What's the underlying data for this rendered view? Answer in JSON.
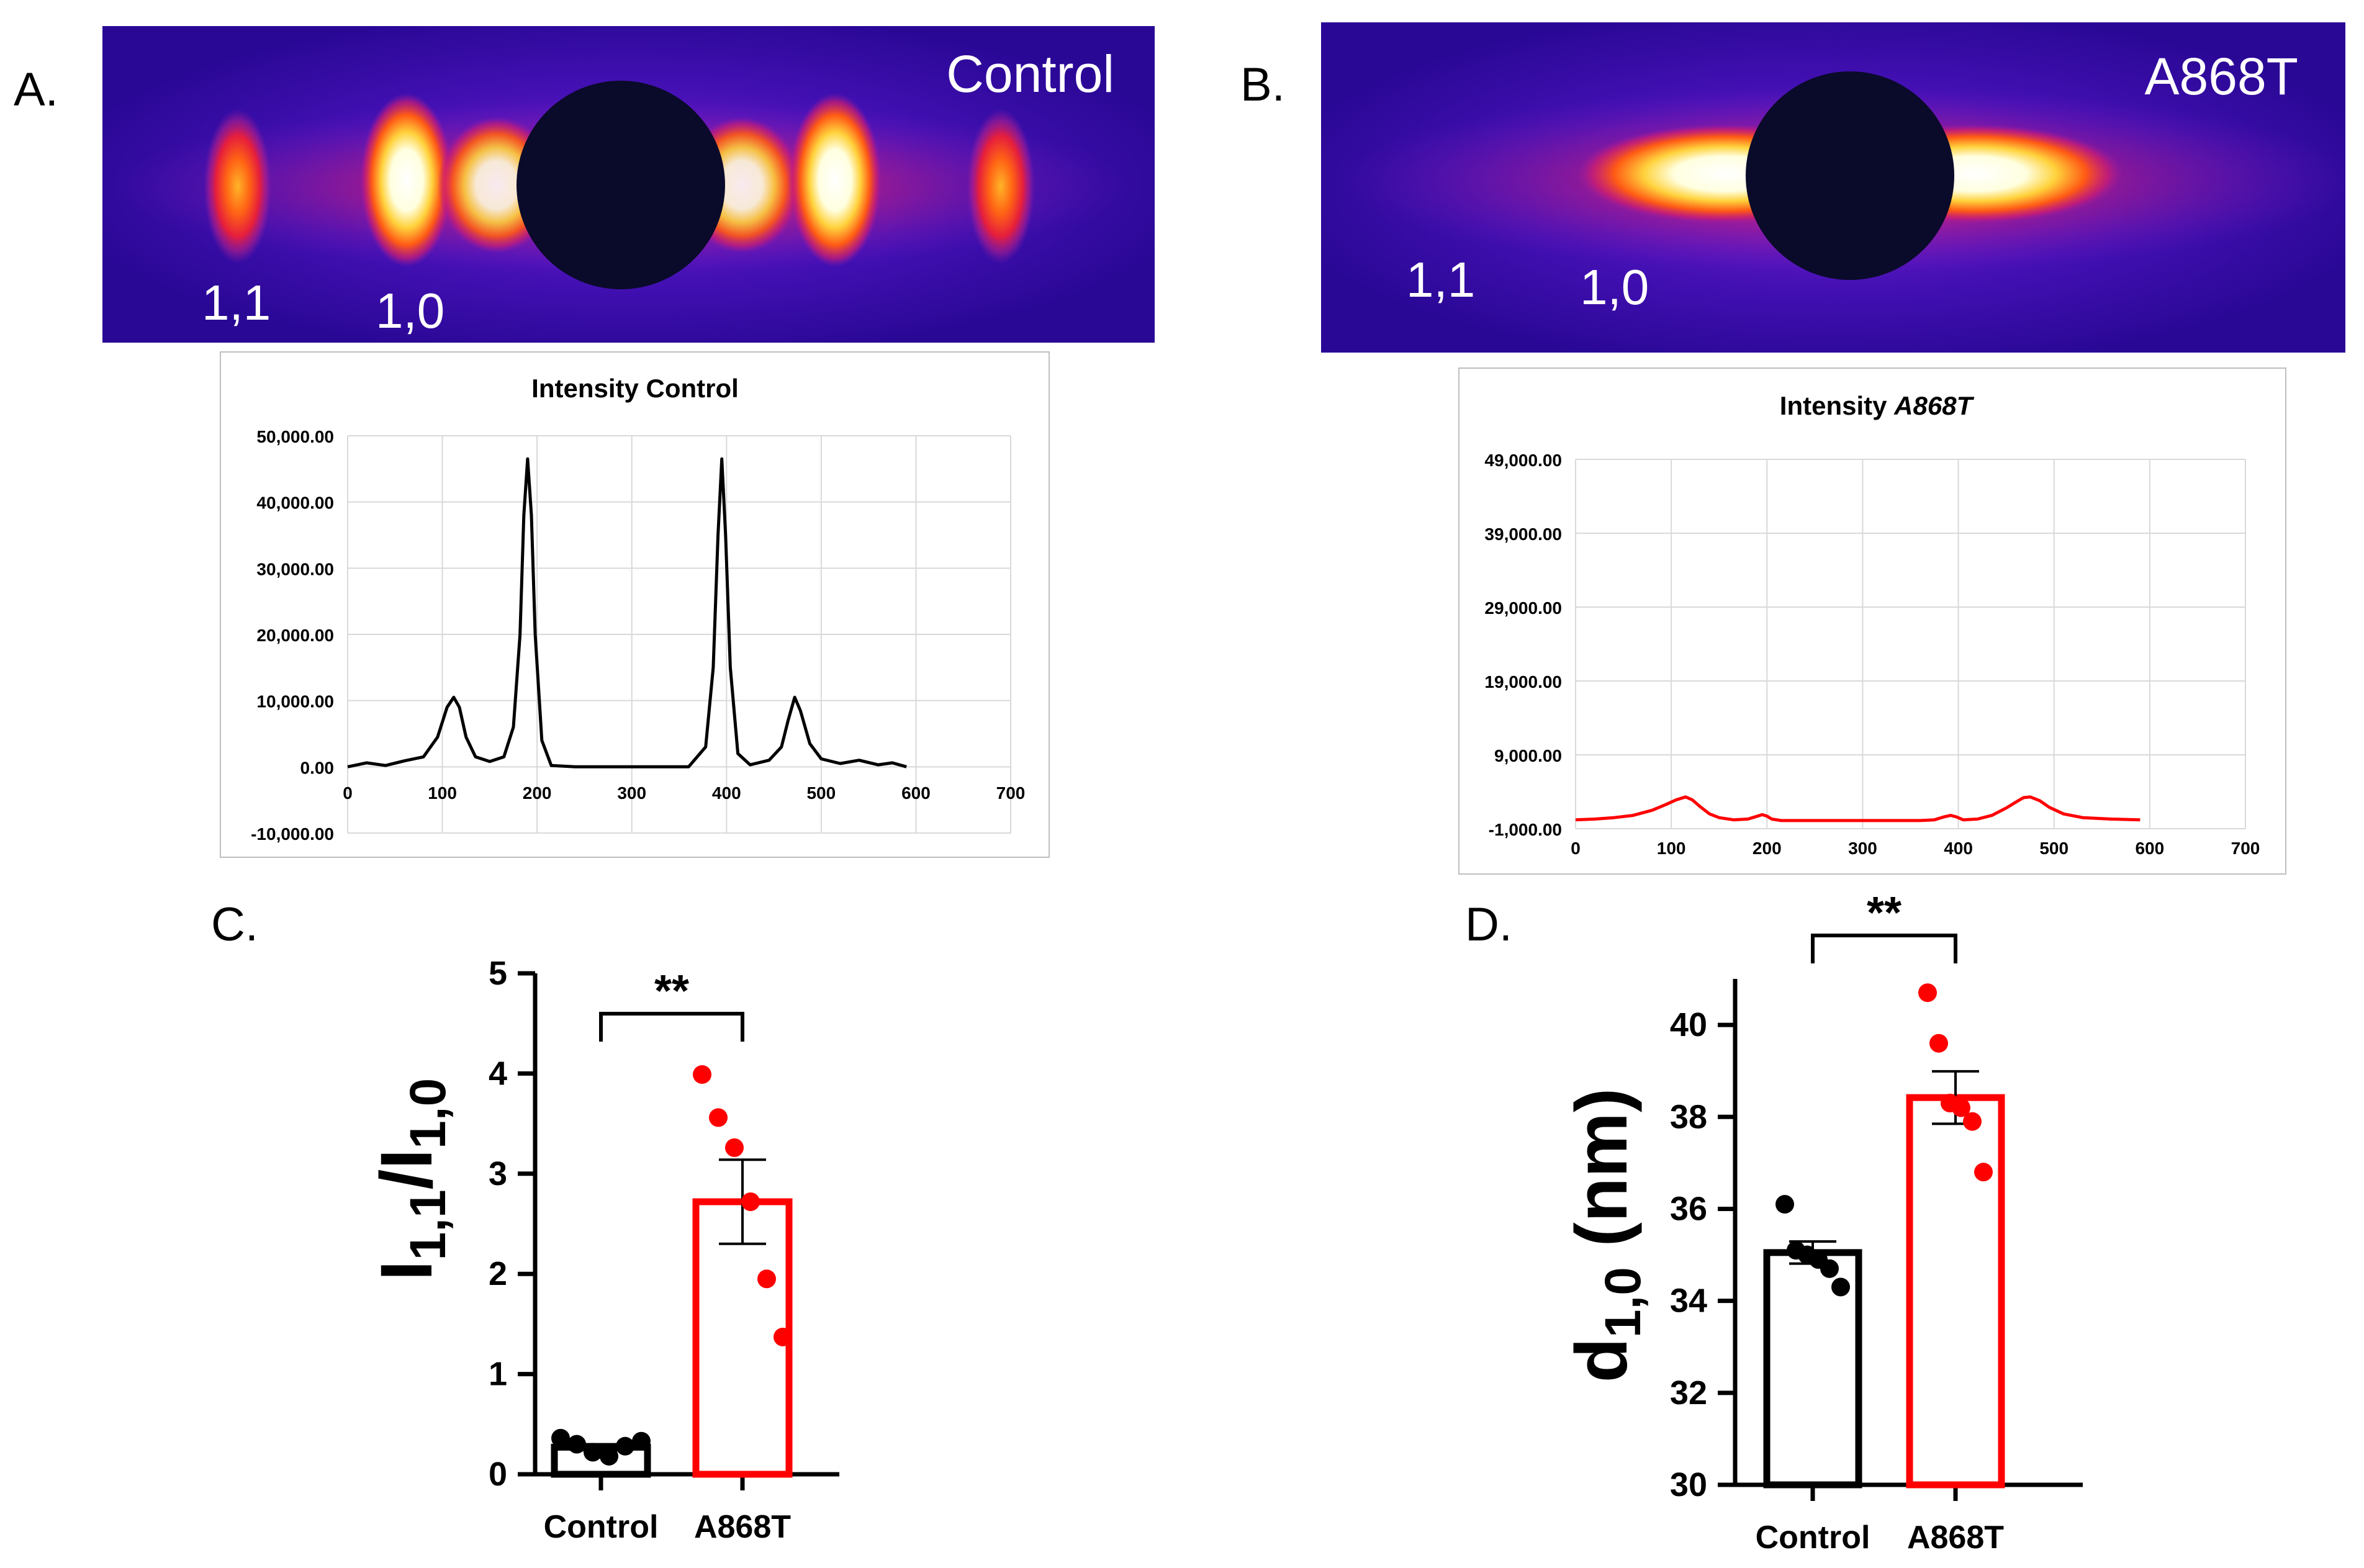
{
  "colors": {
    "background": "#ffffff",
    "axis": "#000000",
    "grid": "#d9d9d9",
    "frame": "#bfbfbf",
    "control_trace": "#000000",
    "a868t_trace": "#ff0000",
    "control_bar": "#000000",
    "a868t_bar": "#ff0000",
    "a868t_points": "#ff0000",
    "control_points": "#000000",
    "diffraction_background": "#3b0aa8",
    "diffraction_beamstop": "#0a0a2a",
    "diffraction_hot": "#ffffff",
    "label_on_image": "#ffffff"
  },
  "panels": {
    "a": {
      "letter": "A.",
      "image_label": "Control",
      "reflections": {
        "r11": "1,1",
        "r10": "1,0"
      }
    },
    "b": {
      "letter": "B.",
      "image_label": "A868T",
      "reflections": {
        "r11": "1,1",
        "r10": "1,0"
      }
    },
    "c": {
      "letter": "C."
    },
    "d": {
      "letter": "D."
    }
  },
  "chart_data": [
    {
      "id": "A",
      "type": "line",
      "title": "Intensity Control",
      "xlim": [
        0,
        700
      ],
      "ylim": [
        -10000,
        50000
      ],
      "x_ticks": [
        0,
        100,
        200,
        300,
        400,
        500,
        600,
        700
      ],
      "y_ticks": [
        -10000,
        0,
        10000,
        20000,
        30000,
        40000,
        50000
      ],
      "y_tick_labels": [
        "-10,000.00",
        "0.00",
        "10,000.00",
        "20,000.00",
        "30,000.00",
        "40,000.00",
        "50,000.00"
      ],
      "grid": true,
      "series": [
        {
          "color": "#000000",
          "x": [
            0,
            20,
            40,
            60,
            80,
            95,
            105,
            112,
            118,
            125,
            135,
            150,
            165,
            175,
            182,
            186,
            190,
            194,
            198,
            205,
            215,
            240,
            300,
            360,
            378,
            386,
            391,
            395,
            399,
            404,
            412,
            425,
            445,
            458,
            465,
            472,
            478,
            488,
            500,
            520,
            540,
            560,
            575,
            590
          ],
          "y": [
            0,
            600,
            200,
            900,
            1500,
            4500,
            9000,
            10500,
            9000,
            4500,
            1500,
            800,
            1500,
            6000,
            20000,
            38000,
            46500,
            38000,
            20000,
            4000,
            200,
            0,
            0,
            0,
            3000,
            15000,
            35000,
            46500,
            35000,
            15000,
            2000,
            300,
            1000,
            3000,
            7000,
            10500,
            8500,
            3500,
            1200,
            500,
            1000,
            300,
            600,
            0
          ]
        }
      ]
    },
    {
      "id": "B",
      "type": "line",
      "title_prefix": "Intensity ",
      "title_emphasis": "A868T",
      "xlim": [
        0,
        700
      ],
      "ylim": [
        -1000,
        49000
      ],
      "x_ticks": [
        0,
        100,
        200,
        300,
        400,
        500,
        600,
        700
      ],
      "y_ticks": [
        -1000,
        9000,
        19000,
        29000,
        39000,
        49000
      ],
      "y_tick_labels": [
        "-1,000.00",
        "9,000.00",
        "19,000.00",
        "29,000.00",
        "39,000.00",
        "49,000.00"
      ],
      "grid": true,
      "series": [
        {
          "color": "#ff0000",
          "x": [
            0,
            20,
            40,
            60,
            80,
            95,
            105,
            115,
            122,
            130,
            140,
            150,
            165,
            180,
            190,
            195,
            200,
            205,
            215,
            240,
            300,
            360,
            375,
            385,
            392,
            398,
            405,
            420,
            435,
            450,
            460,
            468,
            475,
            485,
            495,
            510,
            530,
            560,
            590
          ],
          "y": [
            200,
            300,
            500,
            800,
            1500,
            2300,
            2900,
            3300,
            2900,
            2000,
            1000,
            500,
            200,
            300,
            700,
            900,
            700,
            300,
            100,
            100,
            100,
            100,
            200,
            600,
            800,
            600,
            200,
            300,
            800,
            1800,
            2600,
            3200,
            3300,
            2800,
            1900,
            1000,
            500,
            300,
            200
          ]
        }
      ]
    },
    {
      "id": "C",
      "type": "bar",
      "categories": [
        "Control",
        "A868T"
      ],
      "ylabel_main": "I",
      "ylabel_sub1": "1,1",
      "ylabel_sep": "/I",
      "ylabel_sub2": "1,0",
      "ylim": [
        0,
        5
      ],
      "y_ticks": [
        0,
        1,
        2,
        3,
        4,
        5
      ],
      "y_tick_labels": [
        "0",
        "1",
        "2",
        "3",
        "4",
        "5"
      ],
      "grid": false,
      "significance": "**",
      "series": [
        {
          "categories": [
            "Control",
            "A868T"
          ],
          "means": [
            0.27,
            2.72
          ],
          "sem": [
            0.03,
            0.42
          ],
          "bar_colors": [
            "#000000",
            "#ff0000"
          ],
          "points": [
            [
              0.36,
              0.3,
              0.22,
              0.18,
              0.28,
              0.33
            ],
            [
              3.99,
              3.56,
              3.26,
              2.72,
              1.95,
              1.37
            ]
          ]
        }
      ]
    },
    {
      "id": "D",
      "type": "bar",
      "categories": [
        "Control",
        "A868T"
      ],
      "ylabel_main": "d",
      "ylabel_sub": "1,0",
      "ylabel_unit": " (nm)",
      "ylim": [
        30,
        41
      ],
      "y_ticks": [
        30,
        32,
        34,
        36,
        38,
        40
      ],
      "y_tick_labels": [
        "30",
        "32",
        "34",
        "36",
        "38",
        "40"
      ],
      "grid": false,
      "significance": "**",
      "series": [
        {
          "categories": [
            "Control",
            "A868T"
          ],
          "means": [
            35.05,
            38.42
          ],
          "sem": [
            0.24,
            0.57
          ],
          "bar_colors": [
            "#000000",
            "#ff0000"
          ],
          "points": [
            [
              36.1,
              35.1,
              35.0,
              34.9,
              34.7,
              34.3
            ],
            [
              40.7,
              39.6,
              38.3,
              38.2,
              37.9,
              36.8
            ]
          ]
        }
      ]
    }
  ]
}
